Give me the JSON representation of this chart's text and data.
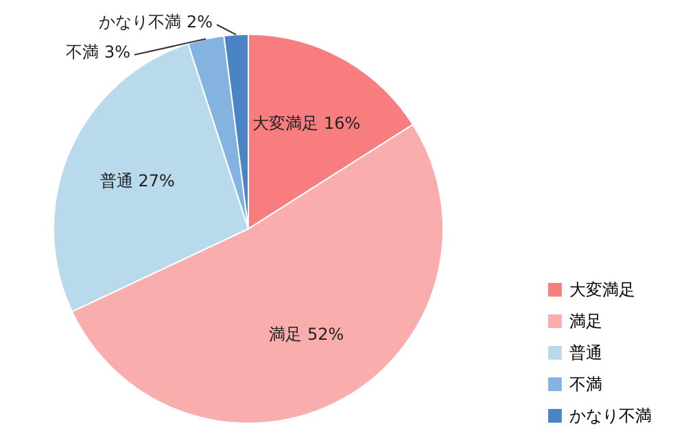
{
  "chart_data": {
    "type": "pie",
    "categories": [
      "大変満足",
      "満足",
      "普通",
      "不満",
      "かなり不満"
    ],
    "values": [
      16,
      52,
      27,
      3,
      2
    ],
    "colors": [
      "#f77d7e",
      "#f9adad",
      "#b9d9ec",
      "#83b3de",
      "#4a84c5"
    ],
    "value_labels": [
      "大変満足 16%",
      "満足 52%",
      "普通 27%",
      "不満 3%",
      "かなり不満 2%"
    ],
    "legend": "bottom right"
  }
}
